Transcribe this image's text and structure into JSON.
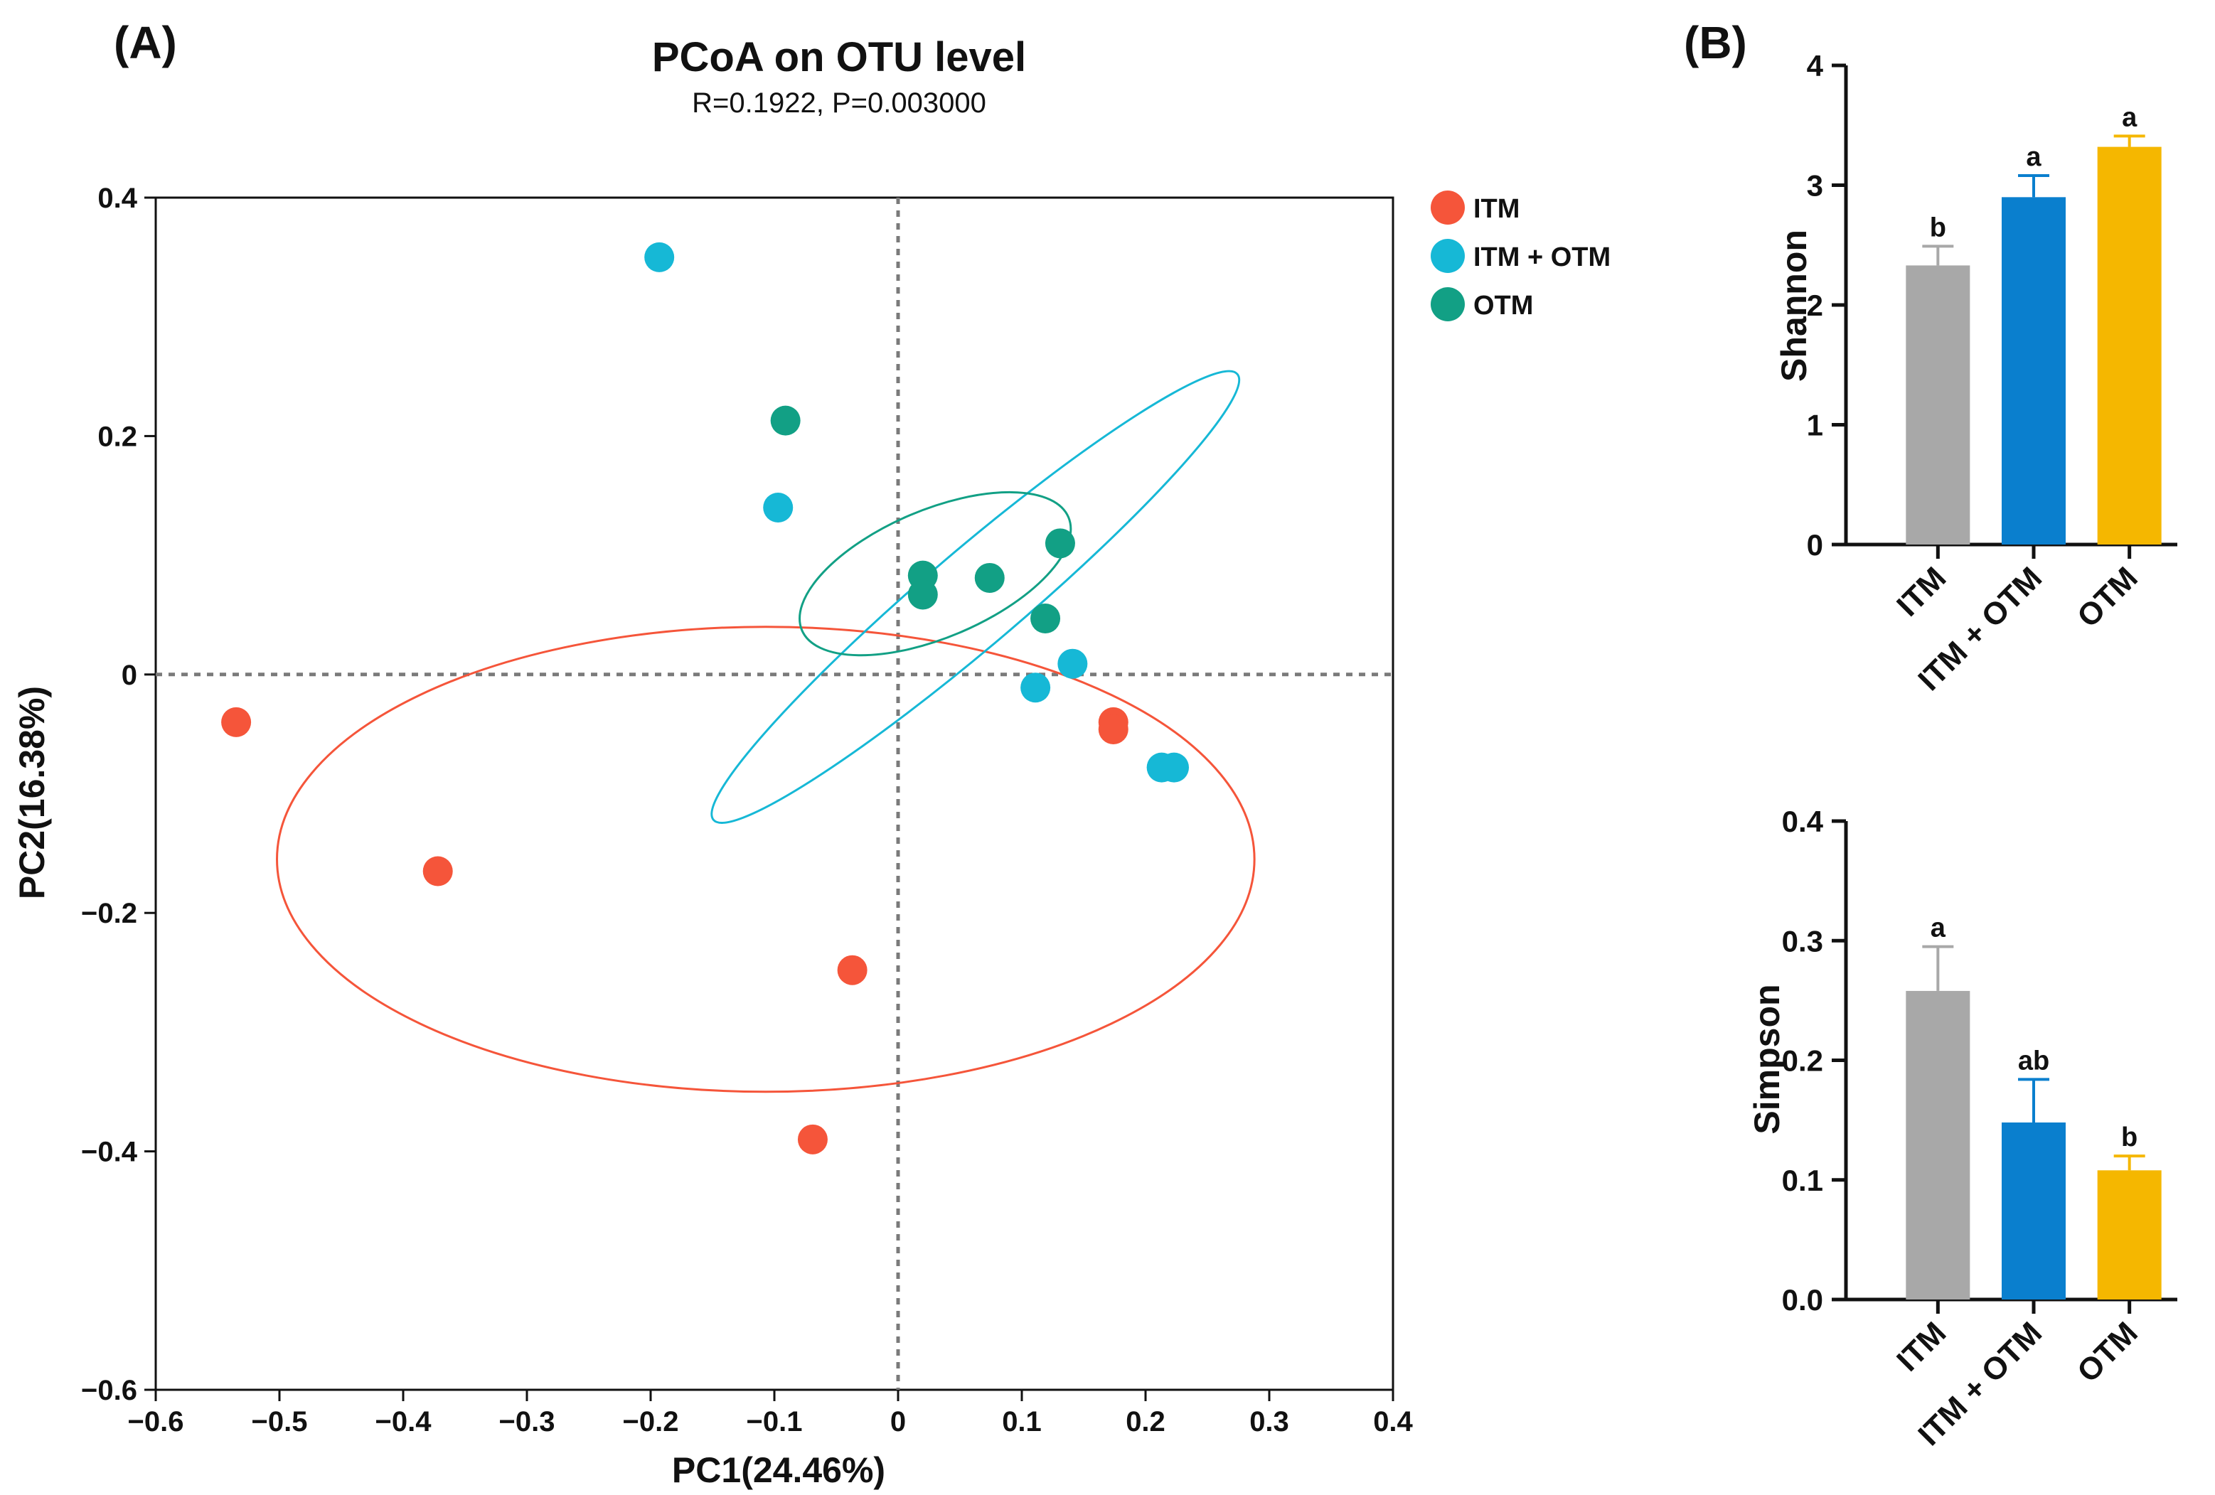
{
  "colors": {
    "itm": "#f5553a",
    "itm_otm": "#16b8d6",
    "otm": "#12a085",
    "bar_itm": "#a8a8a8",
    "bar_itm_otm": "#0a7fce",
    "bar_otm": "#f5b700",
    "axis": "#111111",
    "zero_line": "#7a7a7a"
  },
  "panels": {
    "a_label": "(A)",
    "b_label": "(B)"
  },
  "chart_data": [
    {
      "type": "scatter",
      "title": "PCoA on OTU level",
      "subtitle": "R=0.1922, P=0.003000",
      "xlabel": "PC1(24.46%)",
      "ylabel": "PC2(16.38%)",
      "xlim": [
        -0.6,
        0.4
      ],
      "ylim": [
        -0.6,
        0.4
      ],
      "xticks": [
        -0.6,
        -0.5,
        -0.4,
        -0.3,
        -0.2,
        -0.1,
        0,
        0.1,
        0.2,
        0.3,
        0.4
      ],
      "xtick_labels": [
        "−0.6",
        "−0.5",
        "−0.4",
        "−0.3",
        "−0.2",
        "−0.1",
        "0",
        "0.1",
        "0.2",
        "0.3",
        "0.4"
      ],
      "yticks": [
        0.4,
        0.2,
        0,
        -0.2,
        -0.4,
        -0.6
      ],
      "ytick_labels": [
        "0.4",
        "0.2",
        "0",
        "−0.2",
        "−0.4",
        "−0.6"
      ],
      "legend_position": "right, outside top",
      "series": [
        {
          "name": "ITM",
          "color_key": "itm",
          "points": [
            [
              -0.535,
              -0.04
            ],
            [
              -0.372,
              -0.165
            ],
            [
              -0.037,
              -0.248
            ],
            [
              -0.069,
              -0.39
            ],
            [
              0.174,
              -0.04
            ],
            [
              0.174,
              -0.046
            ]
          ],
          "ellipse": {
            "cx": -0.107,
            "cy": -0.155,
            "rx": 0.395,
            "ry": 0.195,
            "angle_deg": 0
          }
        },
        {
          "name": "ITM + OTM",
          "color_key": "itm_otm",
          "points": [
            [
              -0.193,
              0.35
            ],
            [
              -0.097,
              0.14
            ],
            [
              0.111,
              -0.011
            ],
            [
              0.141,
              0.009
            ],
            [
              0.213,
              -0.078
            ],
            [
              0.223,
              -0.078
            ]
          ],
          "ellipse": {
            "cx": 0.0625,
            "cy": 0.065,
            "rx": 0.278,
            "ry": 0.04,
            "angle_deg": -40.4
          }
        },
        {
          "name": "OTM",
          "color_key": "otm",
          "points": [
            [
              -0.091,
              0.213
            ],
            [
              0.02,
              0.083
            ],
            [
              0.02,
              0.067
            ],
            [
              0.074,
              0.081
            ],
            [
              0.131,
              0.11
            ],
            [
              0.119,
              0.047
            ]
          ],
          "ellipse": {
            "cx": 0.03,
            "cy": 0.0845,
            "rx": 0.117,
            "ry": 0.0535,
            "angle_deg": -23
          }
        }
      ]
    },
    {
      "type": "bar",
      "ylabel": "Shannon",
      "categories": [
        "ITM",
        "ITM + OTM",
        "OTM"
      ],
      "values": [
        2.33,
        2.9,
        3.32
      ],
      "errors": [
        0.16,
        0.18,
        0.09
      ],
      "letters": [
        "b",
        "a",
        "a"
      ],
      "ylim": [
        0,
        4
      ],
      "yticks": [
        0,
        1,
        2,
        3,
        4
      ],
      "ytick_labels": [
        "0",
        "1",
        "2",
        "3",
        "4"
      ],
      "color_keys": [
        "bar_itm",
        "bar_itm_otm",
        "bar_otm"
      ]
    },
    {
      "type": "bar",
      "ylabel": "Simpson",
      "categories": [
        "ITM",
        "ITM + OTM",
        "OTM"
      ],
      "values": [
        0.258,
        0.148,
        0.108
      ],
      "errors": [
        0.037,
        0.036,
        0.012
      ],
      "letters": [
        "a",
        "ab",
        "b"
      ],
      "ylim": [
        0,
        0.4
      ],
      "yticks": [
        0,
        0.1,
        0.2,
        0.3,
        0.4
      ],
      "ytick_labels": [
        "0.0",
        "0.1",
        "0.2",
        "0.3",
        "0.4"
      ],
      "color_keys": [
        "bar_itm",
        "bar_itm_otm",
        "bar_otm"
      ]
    }
  ]
}
